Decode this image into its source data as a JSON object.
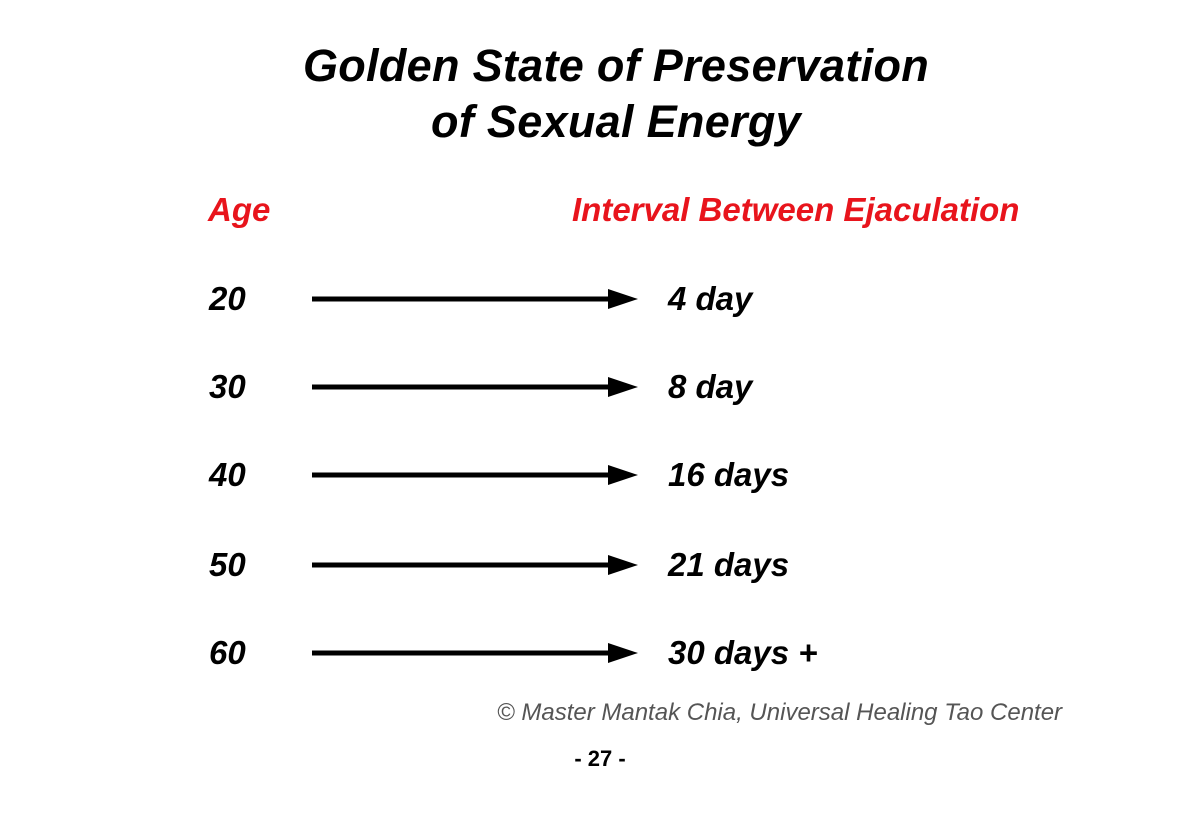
{
  "title": {
    "line1": "Golden State of Preservation",
    "line2": "of Sexual Energy"
  },
  "headers": {
    "age": "Age",
    "interval": "Interval Between Ejaculation"
  },
  "rows": [
    {
      "age": "20",
      "interval": "4 day"
    },
    {
      "age": "30",
      "interval": "8 day"
    },
    {
      "age": "40",
      "interval": "16 days"
    },
    {
      "age": "50",
      "interval": "21 days"
    },
    {
      "age": "60",
      "interval": "30 days +"
    }
  ],
  "copyright": "© Master Mantak Chia, Universal Healing Tao Center",
  "page_number": "- 27 -",
  "colors": {
    "header_red": "#e8141c",
    "text": "#000000"
  }
}
